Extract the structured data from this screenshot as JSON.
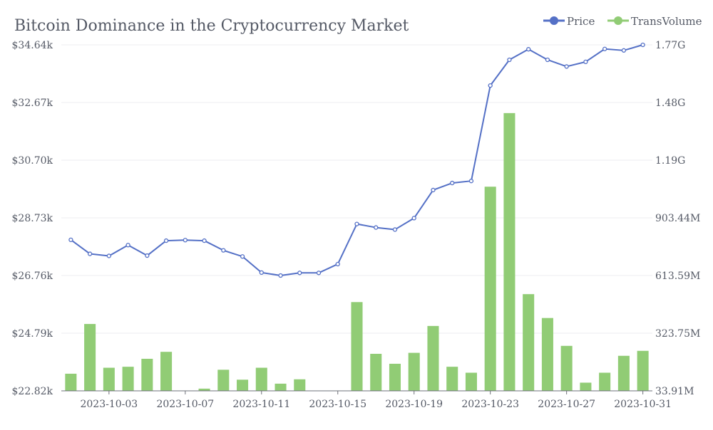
{
  "chart_data": {
    "type": "bar+line",
    "title": "Bitcoin Dominance in the Cryptocurrency Market",
    "legend": {
      "placement": "top-right",
      "items": [
        {
          "name": "Price",
          "color": "#5470c6"
        },
        {
          "name": "TransVolume",
          "color": "#91cc75"
        }
      ]
    },
    "categories": [
      "2023-10-01",
      "2023-10-02",
      "2023-10-03",
      "2023-10-04",
      "2023-10-05",
      "2023-10-06",
      "2023-10-07",
      "2023-10-08",
      "2023-10-09",
      "2023-10-10",
      "2023-10-11",
      "2023-10-12",
      "2023-10-13",
      "2023-10-14",
      "2023-10-15",
      "2023-10-16",
      "2023-10-17",
      "2023-10-18",
      "2023-10-19",
      "2023-10-20",
      "2023-10-21",
      "2023-10-22",
      "2023-10-23",
      "2023-10-24",
      "2023-10-25",
      "2023-10-26",
      "2023-10-27",
      "2023-10-28",
      "2023-10-29",
      "2023-10-30",
      "2023-10-31"
    ],
    "x_tick_labels": [
      "2023-10-03",
      "2023-10-07",
      "2023-10-11",
      "2023-10-15",
      "2023-10-19",
      "2023-10-23",
      "2023-10-27",
      "2023-10-31"
    ],
    "left_axis": {
      "ticks": [
        "$22.82k",
        "$24.79k",
        "$26.76k",
        "$28.73k",
        "$30.70k",
        "$32.67k",
        "$34.64k"
      ],
      "range": [
        22820,
        34640
      ]
    },
    "right_axis": {
      "ticks": [
        "33.91M",
        "323.75M",
        "613.59M",
        "903.44M",
        "1.19G",
        "1.48G",
        "1.77G"
      ],
      "range": [
        33910000,
        1772960000
      ]
    },
    "grid": true,
    "series": [
      {
        "name": "Price",
        "type": "line",
        "axis": "left",
        "color": "#5470c6",
        "values": [
          27980,
          27500,
          27430,
          27800,
          27440,
          27950,
          27970,
          27950,
          27620,
          27410,
          26860,
          26760,
          26850,
          26850,
          27150,
          28520,
          28400,
          28330,
          28720,
          29680,
          29920,
          29990,
          33250,
          34130,
          34490,
          34130,
          33900,
          34060,
          34500,
          34450,
          34640
        ]
      },
      {
        "name": "TransVolume",
        "type": "bar",
        "axis": "right",
        "color": "#91cc75",
        "values": [
          120000000,
          370000000,
          150000000,
          155000000,
          195000000,
          230000000,
          15000000,
          45000000,
          140000000,
          90000000,
          150000000,
          70000000,
          92000000,
          0,
          35000000,
          480000000,
          220000000,
          170000000,
          225000000,
          360000000,
          155000000,
          125000000,
          1060000000,
          1430000000,
          520000000,
          400000000,
          260000000,
          75000000,
          125000000,
          210000000,
          235000000
        ]
      }
    ]
  }
}
